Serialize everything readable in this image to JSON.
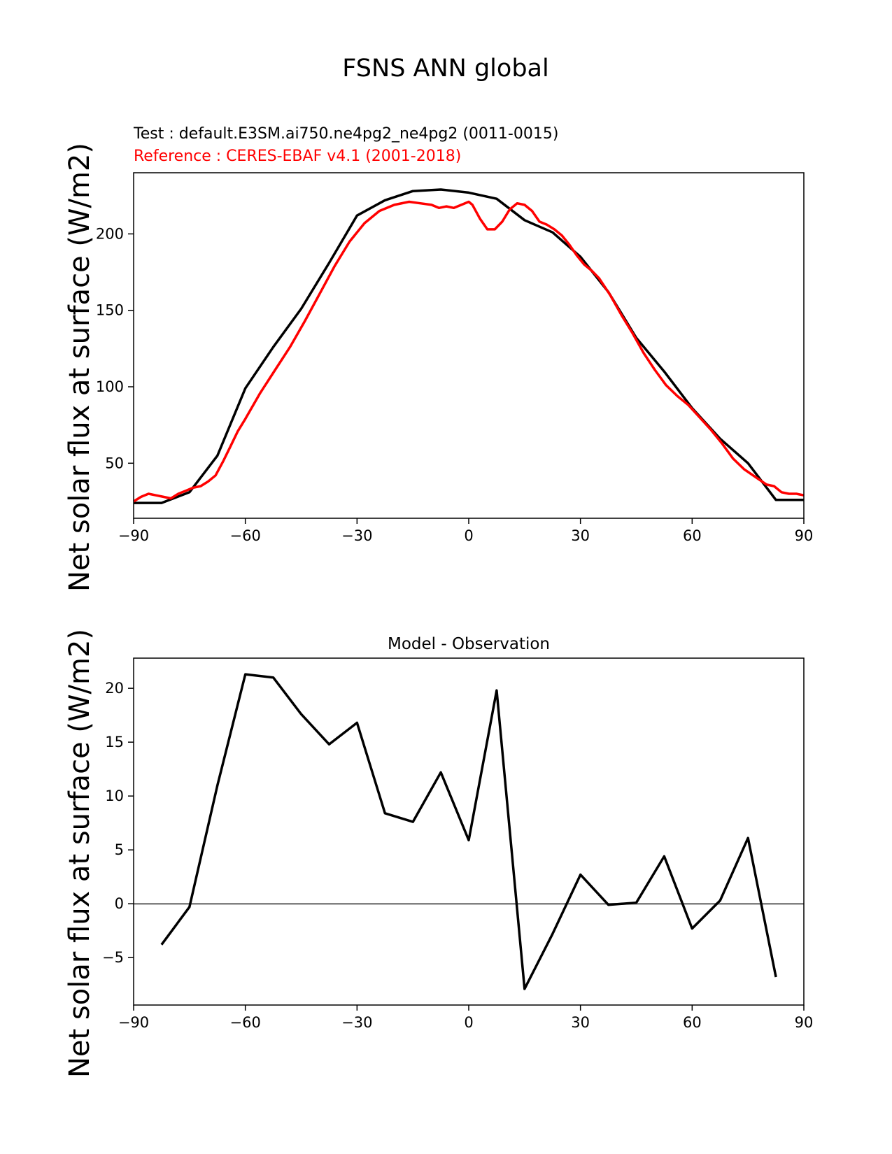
{
  "figure": {
    "suptitle": "FSNS ANN global"
  },
  "chart_data": [
    {
      "type": "line",
      "title_test": "Test : default.E3SM.ai750.ne4pg2_ne4pg2 (0011-0015)",
      "title_ref": "Reference : CERES-EBAF v4.1 (2001-2018)",
      "title": "",
      "xlabel": "",
      "ylabel": "Net solar flux at surface (W/m2)",
      "xlim": [
        -90,
        90
      ],
      "ylim": [
        14,
        240
      ],
      "xticks": [
        -90,
        -60,
        -30,
        0,
        30,
        60,
        90
      ],
      "xtick_labels": [
        "−90",
        "−60",
        "−30",
        "0",
        "30",
        "60",
        "90"
      ],
      "yticks": [
        50,
        100,
        150,
        200
      ],
      "ytick_labels": [
        "50",
        "100",
        "150",
        "200"
      ],
      "grid": false,
      "colors": {
        "test": "#000000",
        "reference": "#ff0000"
      },
      "series": [
        {
          "x": [
            -90,
            -82.5,
            -75,
            -67.5,
            -60,
            -52.5,
            -45,
            -37.5,
            -30,
            -22.5,
            -15,
            -7.5,
            0,
            7.5,
            15,
            22.5,
            30,
            37.5,
            45,
            52.5,
            60,
            67.5,
            75,
            82.5,
            90
          ],
          "values": [
            24,
            24,
            31,
            55,
            99,
            126,
            151,
            181,
            212,
            222,
            228,
            229,
            227,
            223,
            209,
            201,
            185,
            162,
            132,
            110,
            86,
            66,
            50,
            26,
            26
          ]
        },
        {
          "x": [
            -90,
            -88,
            -86,
            -84,
            -82,
            -80,
            -78,
            -76,
            -74,
            -72,
            -70,
            -68,
            -66,
            -64,
            -62,
            -60,
            -56,
            -52,
            -48,
            -44,
            -40,
            -36,
            -32,
            -28,
            -24,
            -20,
            -16,
            -13,
            -10,
            -8,
            -6,
            -4,
            -2,
            0,
            1,
            3,
            5,
            7,
            9,
            11,
            13,
            15,
            17,
            19,
            21,
            23,
            25,
            27,
            29,
            31,
            33,
            35,
            38,
            41,
            44,
            47,
            50,
            53,
            56,
            59,
            62,
            65,
            68,
            71,
            74,
            77,
            80,
            82,
            84,
            86,
            88,
            90
          ],
          "values": [
            25,
            28,
            30,
            29,
            28,
            27,
            30,
            32,
            34,
            35,
            38,
            42,
            51,
            61,
            71,
            79,
            96,
            111,
            126,
            143,
            161,
            179,
            195,
            207,
            215,
            219,
            221,
            220,
            219,
            217,
            218,
            217,
            219,
            221,
            219,
            210,
            203,
            203,
            208,
            216,
            220,
            219,
            215,
            208,
            206,
            203,
            199,
            193,
            186,
            180,
            176,
            171,
            160,
            147,
            135,
            122,
            111,
            101,
            94,
            88,
            80,
            72,
            63,
            53,
            46,
            41,
            36,
            35,
            31,
            30,
            30,
            29
          ]
        }
      ]
    },
    {
      "type": "line",
      "title": "Model - Observation",
      "xlabel": "",
      "ylabel": "Net solar flux at surface (W/m2)",
      "xlim": [
        -90,
        90
      ],
      "ylim": [
        -9.4,
        22.8
      ],
      "xticks": [
        -90,
        -60,
        -30,
        0,
        30,
        60,
        90
      ],
      "xtick_labels": [
        "−90",
        "−60",
        "−30",
        "0",
        "30",
        "60",
        "90"
      ],
      "yticks": [
        -5,
        0,
        5,
        10,
        15,
        20
      ],
      "ytick_labels": [
        "−5",
        "0",
        "5",
        "10",
        "15",
        "20"
      ],
      "grid": false,
      "zero_line": true,
      "colors": {
        "difference": "#000000",
        "zero_line": "#808080"
      },
      "series": [
        {
          "x": [
            -82.5,
            -75,
            -67.5,
            -60,
            -52.5,
            -45,
            -37.5,
            -30,
            -22.5,
            -15,
            -7.5,
            0,
            7.5,
            15,
            22.5,
            30,
            37.5,
            45,
            52.5,
            60,
            67.5,
            75,
            82.5
          ],
          "values": [
            -3.8,
            -0.3,
            11.0,
            21.3,
            21.0,
            17.6,
            14.8,
            16.8,
            8.4,
            7.6,
            12.2,
            5.9,
            19.8,
            -7.9,
            -2.8,
            2.7,
            -0.1,
            0.1,
            4.4,
            -2.3,
            0.3,
            6.1,
            -6.8
          ]
        }
      ]
    }
  ]
}
